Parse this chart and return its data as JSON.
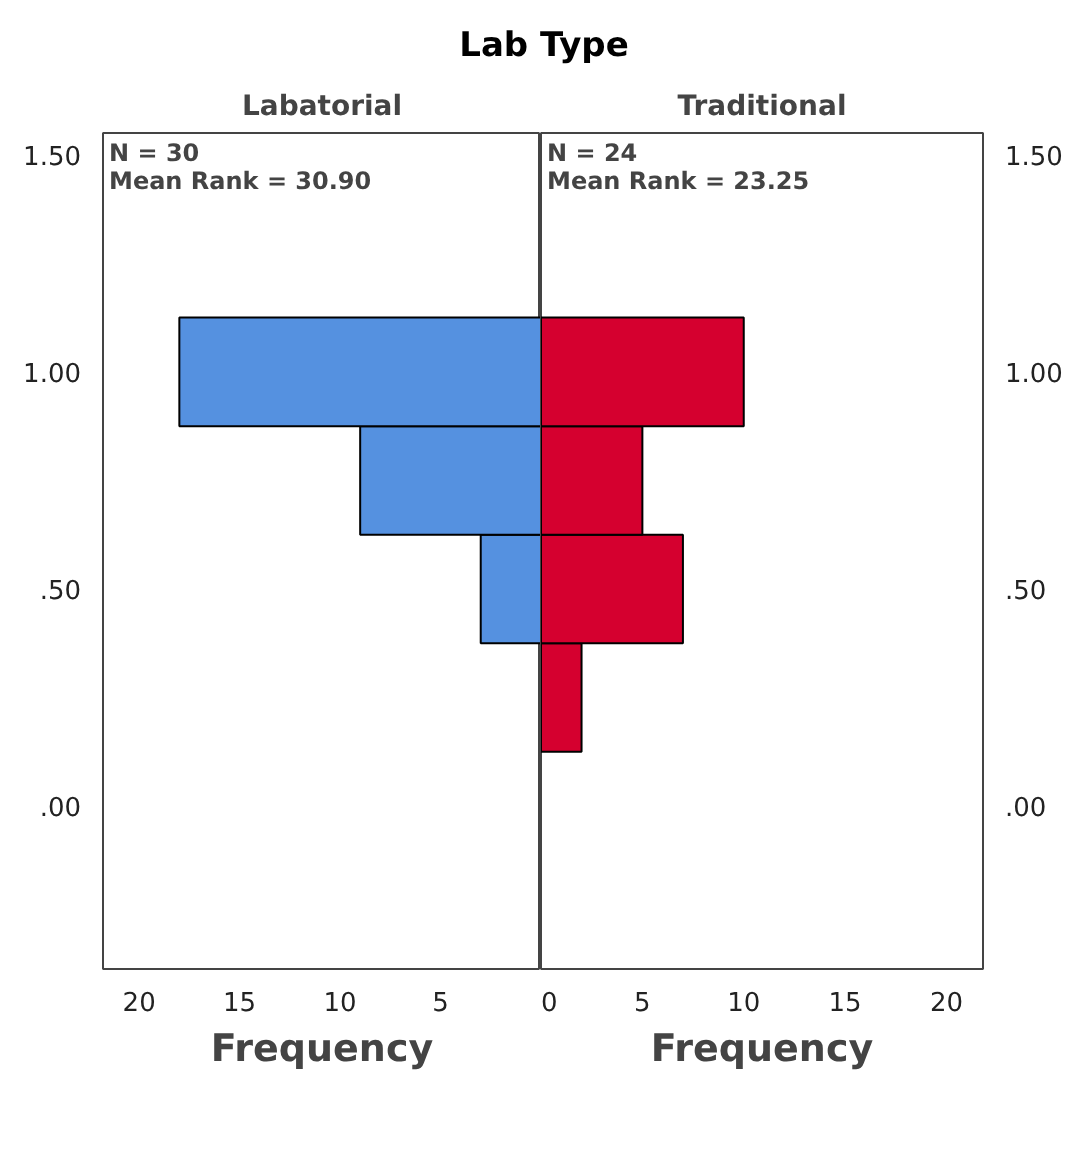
{
  "chart_data": [
    {
      "type": "histogram",
      "orientation": "horizontal",
      "title": "Lab Type",
      "subtitle": "Labatorial",
      "xlabel": "Frequency",
      "bins": [
        0.375,
        0.625,
        0.875,
        1.125
      ],
      "values": [
        3,
        9,
        18
      ],
      "color": "#5591e0",
      "xlim": [
        21.8,
        0
      ],
      "xticks": [
        20,
        15,
        10,
        5
      ],
      "ylim": [
        -0.375,
        1.55
      ],
      "yticks": [
        {
          "value": 0,
          "label": ".00"
        },
        {
          "value": 0.5,
          "label": ".50"
        },
        {
          "value": 1,
          "label": "1.00"
        },
        {
          "value": 1.5,
          "label": "1.50"
        }
      ],
      "grid": false,
      "annotations": [
        "N = 30",
        "Mean Rank = 30.90"
      ]
    },
    {
      "type": "histogram",
      "orientation": "horizontal",
      "subtitle": "Traditional",
      "xlabel": "Frequency",
      "bins": [
        0.125,
        0.375,
        0.625,
        0.875,
        1.125
      ],
      "values": [
        2,
        7,
        5,
        10
      ],
      "color": "#d5002f",
      "xlim": [
        0,
        21.8
      ],
      "xticks": [
        0,
        5,
        10,
        15,
        20
      ],
      "ylim": [
        -0.375,
        1.55
      ],
      "yticks": [
        {
          "value": 0,
          "label": ".00"
        },
        {
          "value": 0.5,
          "label": ".50"
        },
        {
          "value": 1,
          "label": "1.00"
        },
        {
          "value": 1.5,
          "label": "1.50"
        }
      ],
      "grid": false,
      "annotations": [
        "N = 24",
        "Mean Rank = 23.25"
      ]
    }
  ]
}
